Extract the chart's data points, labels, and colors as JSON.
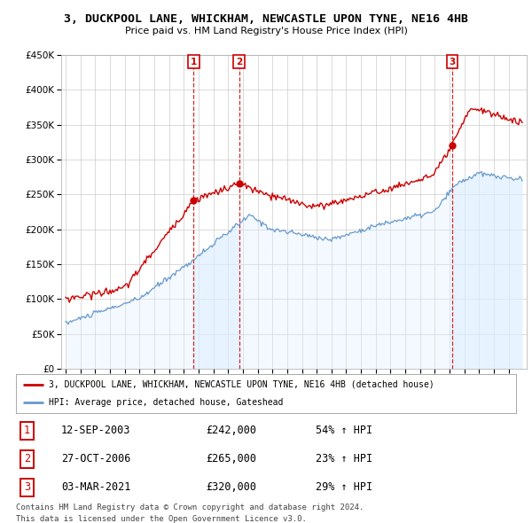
{
  "title": "3, DUCKPOOL LANE, WHICKHAM, NEWCASTLE UPON TYNE, NE16 4HB",
  "subtitle": "Price paid vs. HM Land Registry's House Price Index (HPI)",
  "title_fontsize": 9.5,
  "subtitle_fontsize": 8,
  "ylim": [
    0,
    450000
  ],
  "yticks": [
    0,
    50000,
    100000,
    150000,
    200000,
    250000,
    300000,
    350000,
    400000,
    450000
  ],
  "background_color": "#ffffff",
  "plot_bg_color": "#ffffff",
  "grid_color": "#cccccc",
  "sale_prices": [
    242000,
    265000,
    320000
  ],
  "sale_labels": [
    "1",
    "2",
    "3"
  ],
  "sale_label_dates_str": [
    "12-SEP-2003",
    "27-OCT-2006",
    "03-MAR-2021"
  ],
  "sale_pct_hpi": [
    "54%",
    "23%",
    "29%"
  ],
  "legend_red_label": "3, DUCKPOOL LANE, WHICKHAM, NEWCASTLE UPON TYNE, NE16 4HB (detached house)",
  "legend_blue_label": "HPI: Average price, detached house, Gateshead",
  "footer1": "Contains HM Land Registry data © Crown copyright and database right 2024.",
  "footer2": "This data is licensed under the Open Government Licence v3.0.",
  "red_color": "#cc0000",
  "blue_color": "#6699cc",
  "vline_color": "#cc0000",
  "dot_color": "#cc0000",
  "blue_fill_color": "#ddeeff"
}
